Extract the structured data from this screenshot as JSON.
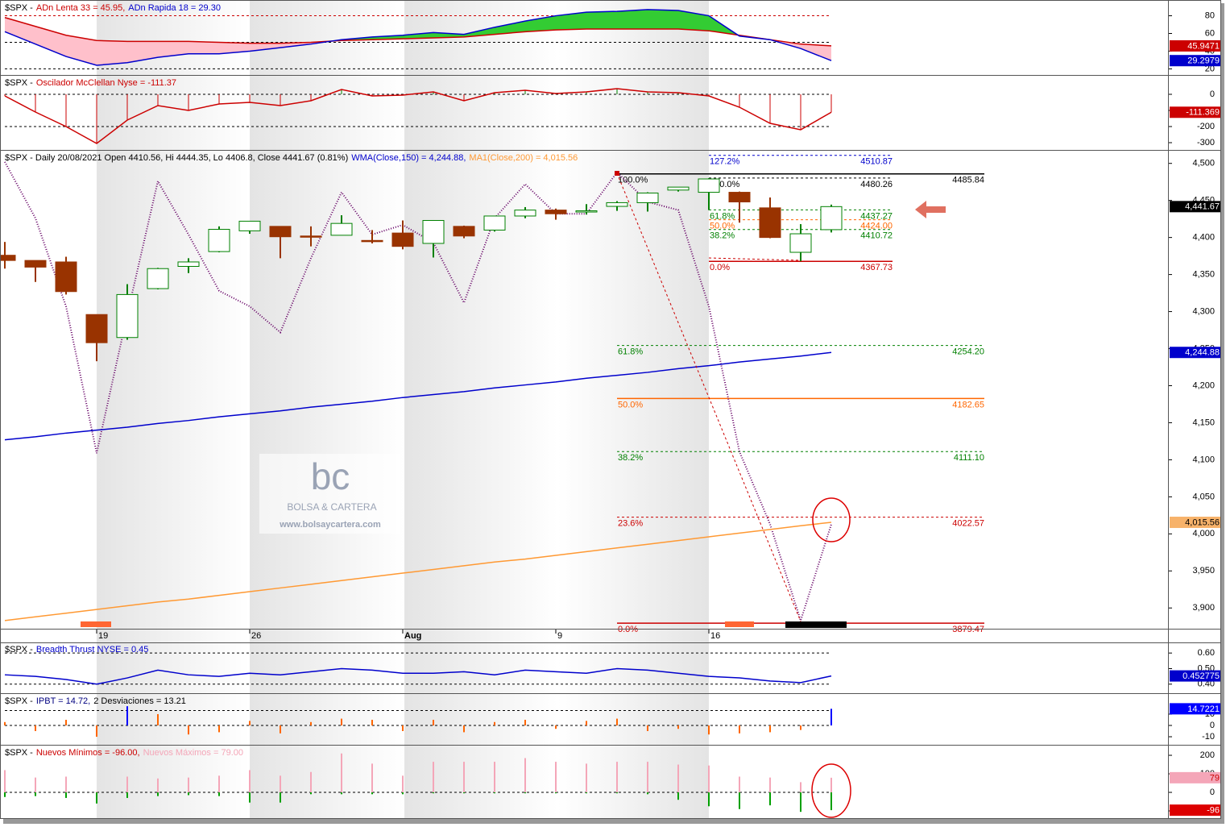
{
  "watermark": {
    "logo": "bc",
    "name": "BOLSA & CARTERA",
    "url": "www.bolsaycartera.com"
  },
  "chart_data": [
    {
      "type": "area",
      "title": [
        {
          "text": "$SPX -",
          "color": "#000000"
        },
        {
          "text": "ADn Lenta 33 = 45.95,",
          "color": "#cc0000"
        },
        {
          "text": "ADn Rapida 18 = 29.30",
          "color": "#0000cc"
        }
      ],
      "ylim": [
        14,
        96
      ],
      "yticks": [
        20,
        40,
        60,
        80
      ],
      "hlines": [
        {
          "value": 80,
          "color": "#cc0000"
        },
        {
          "value": 50,
          "color": "#000000"
        },
        {
          "value": 20,
          "color": "#000000"
        }
      ],
      "fill_colors": {
        "above": "#33cc33",
        "below": "#ffc0cb"
      },
      "series": [
        {
          "color": "#cc0000",
          "box": true,
          "values": [
            78,
            68,
            58,
            52,
            51,
            51,
            51,
            50,
            49,
            49,
            50,
            52,
            53,
            54,
            55,
            56,
            59,
            62,
            64,
            65,
            65,
            65,
            65,
            63,
            58,
            53,
            48,
            45.9471
          ]
        },
        {
          "color": "#0000cc",
          "box": true,
          "values": [
            62,
            48,
            34,
            24,
            27,
            33,
            37,
            37,
            40,
            44,
            48,
            53,
            56,
            58,
            61,
            59,
            67,
            74,
            80,
            84,
            85,
            87,
            86,
            80,
            57,
            53,
            43,
            29.2979
          ]
        }
      ]
    },
    {
      "type": "oscillator",
      "title": [
        {
          "text": "$SPX -",
          "color": "#000000"
        },
        {
          "text": "Oscilador McClellan Nyse = -111.37",
          "color": "#cc0000"
        }
      ],
      "ylim": [
        -340,
        110
      ],
      "yticks": [
        0,
        -100,
        -200,
        -300
      ],
      "hlines": [
        {
          "value": 0,
          "color": "#000000"
        },
        {
          "value": -200,
          "color": "#000000"
        }
      ],
      "stem_colors": {
        "above": "#008000",
        "below": "#cc0000"
      },
      "series": [
        {
          "color": "#cc0000",
          "box": true,
          "values": [
            -10,
            -110,
            -200,
            -305,
            -160,
            -70,
            -100,
            -60,
            -50,
            -70,
            -40,
            30,
            -10,
            -5,
            15,
            -40,
            10,
            25,
            5,
            15,
            35,
            15,
            10,
            -10,
            -80,
            -180,
            -220,
            -111.369
          ]
        }
      ]
    },
    {
      "type": "candlestick",
      "title": [
        {
          "text": "$SPX - Daily 20/08/2021 Open 4410.56, Hi 4444.35, Lo 4406.8, Close 4441.67 (0.81%)",
          "color": "#000000"
        },
        {
          "text": "WMA(Close,150) = 4,244.88,",
          "color": "#0000cc"
        },
        {
          "text": "MA1(Close,200) = 4,015.56",
          "color": "#ff9933"
        }
      ],
      "categories": [
        null,
        null,
        null,
        "19",
        null,
        null,
        null,
        null,
        "26",
        null,
        null,
        null,
        null,
        "Aug",
        null,
        null,
        null,
        null,
        "9",
        null,
        null,
        null,
        null,
        "16",
        null,
        null,
        null,
        null
      ],
      "ylim": [
        3872,
        4516
      ],
      "yticks": [
        {
          "value": 3900,
          "label": "3,900"
        },
        {
          "value": 3950,
          "label": "3,950"
        },
        {
          "value": 4000,
          "label": "4,000"
        },
        {
          "value": 4050,
          "label": "4,050"
        },
        {
          "value": 4100,
          "label": "4,100"
        },
        {
          "value": 4150,
          "label": "4,150"
        },
        {
          "value": 4200,
          "label": "4,200"
        },
        {
          "value": 4250,
          "label": "4,250"
        },
        {
          "value": 4300,
          "label": "4,300"
        },
        {
          "value": 4350,
          "label": "4,350"
        },
        {
          "value": 4400,
          "label": "4,400"
        },
        {
          "value": 4450,
          "label": "4,450"
        },
        {
          "value": 4500,
          "label": "4,500"
        }
      ],
      "up_color": "#008000",
      "down_color": "#993300",
      "open": [
        4376,
        4369,
        4367,
        4296,
        4265,
        4331,
        4361,
        4381,
        4409,
        4415,
        4402,
        4403,
        4396,
        4406,
        4392,
        4415,
        4410,
        4429,
        4437,
        4435,
        4442,
        4447,
        4464,
        4461,
        4461,
        4440,
        4380,
        4410.56
      ],
      "high": [
        4394,
        4369,
        4374,
        4296,
        4337,
        4359,
        4372,
        4415,
        4422,
        4415,
        4415,
        4430,
        4410,
        4423,
        4423,
        4416,
        4429,
        4441,
        4439,
        4445,
        4449,
        4461,
        4468,
        4480,
        4462,
        4454,
        4418,
        4444.35
      ],
      "low": [
        4358,
        4340,
        4323,
        4233,
        4262,
        4330,
        4352,
        4380,
        4405,
        4372,
        4388,
        4403,
        4392,
        4384,
        4373,
        4399,
        4408,
        4426,
        4424,
        4431,
        4436,
        4435,
        4462,
        4437,
        4420,
        4399,
        4368,
        4406.8
      ],
      "close": [
        4369,
        4360,
        4327,
        4258,
        4323,
        4358,
        4367,
        4411,
        4422,
        4401,
        4401,
        4419,
        4395,
        4388,
        4423,
        4402,
        4429,
        4437,
        4432,
        4436,
        4447,
        4460,
        4468,
        4479,
        4448,
        4400,
        4405,
        4441.67
      ],
      "close_label": "4,441.67",
      "close_box_color": "#000000",
      "series": [
        {
          "color": "#660066",
          "dotted": true,
          "values": [
            4502,
            4426,
            4307,
            4109,
            4296,
            4476,
            4404,
            4328,
            4307,
            4272,
            4372,
            4461,
            4404,
            4417,
            4393,
            4312,
            4426,
            4472,
            4432,
            4432,
            4488,
            4448,
            4437,
            4307,
            4111,
            4013,
            3883,
            4013
          ]
        },
        {
          "color": "#0000cc",
          "box": true,
          "last_label": "4,244.88",
          "values": [
            4127,
            4131,
            4136,
            4140,
            4144,
            4149,
            4153,
            4158,
            4162,
            4166,
            4171,
            4175,
            4179,
            4184,
            4188,
            4192,
            4197,
            4201,
            4205,
            4210,
            4214,
            4218,
            4223,
            4227,
            4232,
            4236,
            4240,
            4244.88
          ]
        },
        {
          "color": "#ff9933",
          "box": true,
          "last_label": "4,015.56",
          "box_color": "#f7b26a",
          "box_text": "#000000",
          "values": [
            3883,
            3888,
            3893,
            3898,
            3903,
            3908,
            3912,
            3917,
            3922,
            3927,
            3932,
            3937,
            3942,
            3947,
            3952,
            3957,
            3962,
            3966,
            3971,
            3976,
            3981,
            3986,
            3991,
            3996,
            4001,
            4006,
            4011,
            4015.56
          ]
        }
      ],
      "fib_short": [
        {
          "pct": "127.2%",
          "price": 4510.87,
          "color": "#0000cc",
          "dash": true
        },
        {
          "pct": "100.0%",
          "price": 4480.26,
          "color": "#000000",
          "dash": true
        },
        {
          "pct": "61.8%",
          "price": 4437.27,
          "color": "#008000",
          "dash": true
        },
        {
          "pct": "50.0%",
          "price": 4424,
          "price_label": "4424.00",
          "color": "#ff6600",
          "dash": true
        },
        {
          "pct": "38.2%",
          "price": 4410.72,
          "color": "#008000",
          "dash": true
        },
        {
          "pct": "0.0%",
          "price": 4367.73,
          "color": "#cc0000",
          "dash": false
        }
      ],
      "fib_long": [
        {
          "pct": "100.0%",
          "price": 4485.84,
          "color": "#000000",
          "dash": false
        },
        {
          "pct": "61.8%",
          "price": 4254.2,
          "price_label": "4254.20",
          "color": "#008000",
          "dash": true
        },
        {
          "pct": "50.0%",
          "price": 4182.65,
          "color": "#ff6600",
          "dash": false
        },
        {
          "pct": "38.2%",
          "price": 4111.1,
          "price_label": "4111.10",
          "color": "#008000",
          "dash": true
        },
        {
          "pct": "23.6%",
          "price": 4022.57,
          "color": "#cc0000",
          "dash": true
        },
        {
          "pct": "0.0%",
          "price": 3879.47,
          "color": "#cc0000",
          "dash": false
        }
      ]
    },
    {
      "type": "line",
      "title": [
        {
          "text": "$SPX -",
          "color": "#000000"
        },
        {
          "text": "Breadth Thrust NYSE = 0.45",
          "color": "#0000cc"
        }
      ],
      "ylim": [
        0.347,
        0.663
      ],
      "yticks": [
        {
          "value": 0.4,
          "label": "0.40"
        },
        {
          "value": 0.5,
          "label": "0.50"
        },
        {
          "value": 0.6,
          "label": "0.60"
        }
      ],
      "hlines": [
        {
          "value": 0.6,
          "color": "#000000"
        },
        {
          "value": 0.4,
          "color": "#000000"
        }
      ],
      "series": [
        {
          "color": "#0000cc",
          "box": true,
          "values": [
            0.46,
            0.45,
            0.43,
            0.4,
            0.44,
            0.49,
            0.46,
            0.45,
            0.47,
            0.46,
            0.48,
            0.5,
            0.49,
            0.47,
            0.47,
            0.48,
            0.46,
            0.49,
            0.48,
            0.47,
            0.5,
            0.49,
            0.47,
            0.45,
            0.44,
            0.42,
            0.41,
            0.452775
          ]
        }
      ]
    },
    {
      "type": "bar",
      "title": [
        {
          "text": "$SPX -",
          "color": "#000000"
        },
        {
          "text": "IPBT = 14.72,",
          "color": "#000080"
        },
        {
          "text": "2 Desviaciones = 13.21",
          "color": "#000000"
        }
      ],
      "ylim": [
        -16.4,
        27.1
      ],
      "yticks": [
        -10,
        0,
        10
      ],
      "threshold": 13.21,
      "hlines": [
        {
          "value": 13.21,
          "color": "#000000"
        },
        {
          "value": 0,
          "color": "#000000"
        }
      ],
      "series": [
        {
          "color": "#0000ff",
          "stem_color": "#ff6600",
          "box": true,
          "values": [
            3,
            -5,
            5,
            -10,
            17,
            10,
            -8,
            -6,
            4,
            -7,
            3,
            6,
            5,
            -5,
            5,
            -6,
            3,
            5,
            -3,
            4,
            6,
            -5,
            -3,
            -8,
            -7,
            -6,
            -4,
            14.7221
          ]
        }
      ]
    },
    {
      "type": "bar",
      "title": [
        {
          "text": "$SPX -",
          "color": "#000000"
        },
        {
          "text": "Nuevos Mínimos = -96.00,",
          "color": "#cc0000"
        },
        {
          "text": "Nuevos Máximos = 79.00",
          "color": "#f4a6b8"
        }
      ],
      "ylim": [
        -139,
        248
      ],
      "yticks": [
        -100,
        0,
        100,
        200
      ],
      "hlines": [
        {
          "value": 0,
          "color": "#000000"
        }
      ],
      "series": [
        {
          "color": "#f4a6b8",
          "box": true,
          "box_text": "#cc0000",
          "values": [
            120,
            80,
            85,
            5,
            85,
            75,
            80,
            90,
            120,
            90,
            110,
            210,
            155,
            90,
            165,
            165,
            165,
            185,
            165,
            155,
            165,
            165,
            150,
            145,
            85,
            80,
            55,
            79
          ]
        },
        {
          "color": "#00a000",
          "box": true,
          "box_color": "#dd0000",
          "values": [
            -25,
            -20,
            -30,
            -60,
            -30,
            -20,
            -15,
            -20,
            -55,
            -55,
            -10,
            -10,
            -10,
            -10,
            -5,
            -5,
            -5,
            -5,
            -5,
            -5,
            -5,
            -10,
            -40,
            -75,
            -90,
            -70,
            -105,
            -96
          ]
        }
      ]
    }
  ]
}
